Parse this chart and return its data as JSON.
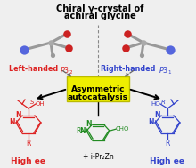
{
  "title_line1": "Chiral γ-crystal of",
  "title_line2": "achiral glycine",
  "left_handed": "Left-handed ",
  "left_p": "P3",
  "left_sub": "2",
  "right_handed": "Right-handed ",
  "right_p": "P3",
  "right_sub": "1",
  "center_box_text1": "Asymmetric",
  "center_box_text2": "autocatalysis",
  "left_product": "High ee",
  "right_product": "High ee",
  "reagent_bottom": "+ i-Pr₂Zn",
  "left_color": "#dd2222",
  "right_color": "#3344cc",
  "green_color": "#228B22",
  "box_bg": "#eeee00",
  "box_edge": "#bbbb00",
  "background": "#efefef",
  "gray_bond": "#999999",
  "n_blue": "#5566dd",
  "o_red": "#cc2222"
}
